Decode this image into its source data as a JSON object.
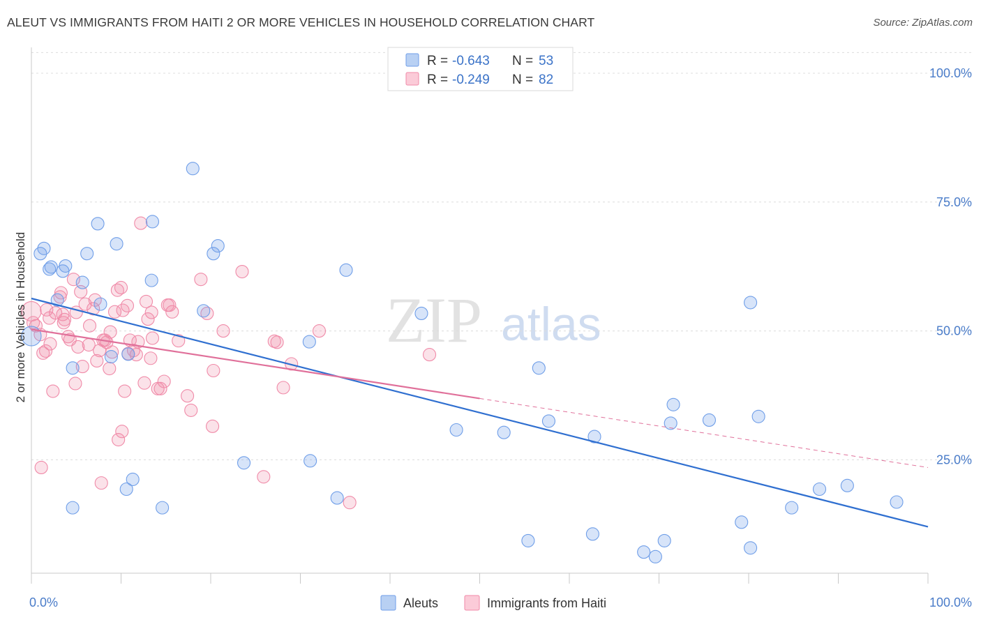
{
  "header": {
    "title": "ALEUT VS IMMIGRANTS FROM HAITI 2 OR MORE VEHICLES IN HOUSEHOLD CORRELATION CHART",
    "source": "Source: ZipAtlas.com"
  },
  "watermark": {
    "zip": "ZIP",
    "atlas": "atlas"
  },
  "legend": {
    "rows": [
      {
        "r_label": "R =",
        "r_value": "-0.643",
        "n_label": "N =",
        "n_value": "53",
        "color": "#6f9ee8"
      },
      {
        "r_label": "R =",
        "r_value": "-0.249",
        "n_label": "N =",
        "n_value": "82",
        "color": "#f08aa8"
      }
    ]
  },
  "bottom_legend": {
    "items": [
      {
        "label": "Aleuts",
        "color": "#6f9ee8"
      },
      {
        "label": "Immigrants from Haiti",
        "color": "#f08aa8"
      }
    ]
  },
  "chart_data": {
    "type": "scatter",
    "title": "ALEUT VS IMMIGRANTS FROM HAITI 2 OR MORE VEHICLES IN HOUSEHOLD CORRELATION CHART",
    "xlabel": "",
    "ylabel": "2 or more Vehicles in Household",
    "xlim": [
      0,
      100
    ],
    "ylim": [
      3,
      105
    ],
    "x_tick_labels": [
      "0.0%",
      "100.0%"
    ],
    "y_tick_labels": [
      "100.0%",
      "75.0%",
      "50.0%",
      "25.0%"
    ],
    "y_ticks": [
      100,
      75,
      50,
      25
    ],
    "grid": true,
    "legend_position": "top-center",
    "colors": {
      "aleuts": "#6f9ee8",
      "haiti": "#f08aa8",
      "aleuts_line": "#2f6fd0",
      "haiti_line": "#e0709a"
    },
    "series": [
      {
        "name": "Aleuts",
        "trend": {
          "x0": 0,
          "y0": 56.3,
          "x1": 100,
          "y1": 12.0
        },
        "points": [
          [
            0.0,
            49.0
          ],
          [
            1.0,
            65.0
          ],
          [
            1.4,
            66.0
          ],
          [
            2.0,
            62.0
          ],
          [
            2.2,
            62.4
          ],
          [
            2.9,
            56.0
          ],
          [
            3.5,
            61.6
          ],
          [
            3.8,
            62.6
          ],
          [
            4.6,
            42.8
          ],
          [
            5.7,
            59.4
          ],
          [
            6.2,
            65.0
          ],
          [
            7.4,
            70.8
          ],
          [
            7.7,
            55.2
          ],
          [
            8.9,
            45.0
          ],
          [
            9.5,
            66.9
          ],
          [
            10.6,
            19.3
          ],
          [
            10.8,
            45.5
          ],
          [
            11.3,
            21.2
          ],
          [
            13.5,
            71.2
          ],
          [
            13.4,
            59.8
          ],
          [
            14.6,
            15.7
          ],
          [
            18.0,
            81.5
          ],
          [
            19.2,
            53.9
          ],
          [
            20.3,
            65.0
          ],
          [
            20.8,
            66.5
          ],
          [
            23.7,
            24.4
          ],
          [
            31.0,
            47.9
          ],
          [
            31.1,
            24.8
          ],
          [
            34.1,
            17.6
          ],
          [
            35.1,
            61.8
          ],
          [
            43.5,
            53.4
          ],
          [
            47.4,
            30.8
          ],
          [
            52.7,
            30.3
          ],
          [
            55.4,
            9.3
          ],
          [
            56.6,
            42.8
          ],
          [
            57.7,
            32.5
          ],
          [
            62.6,
            10.6
          ],
          [
            62.8,
            29.5
          ],
          [
            68.3,
            7.1
          ],
          [
            69.6,
            6.2
          ],
          [
            70.6,
            9.3
          ],
          [
            71.3,
            32.1
          ],
          [
            71.6,
            35.7
          ],
          [
            75.6,
            32.7
          ],
          [
            79.2,
            12.9
          ],
          [
            80.2,
            7.9
          ],
          [
            80.2,
            55.5
          ],
          [
            81.1,
            33.4
          ],
          [
            84.8,
            15.7
          ],
          [
            87.9,
            19.3
          ],
          [
            91.0,
            20.0
          ],
          [
            96.5,
            16.8
          ],
          [
            4.6,
            15.7
          ]
        ]
      },
      {
        "name": "Immigrants from Haiti",
        "trend": {
          "x0": 0,
          "y0": 50.3,
          "x1": 100,
          "y1": 23.5,
          "solid_until_x": 50
        },
        "points": [
          [
            0.0,
            53.8
          ],
          [
            0.2,
            51.6
          ],
          [
            0.5,
            51.0
          ],
          [
            1.0,
            49.3
          ],
          [
            1.1,
            23.5
          ],
          [
            1.3,
            45.7
          ],
          [
            1.6,
            46.1
          ],
          [
            1.7,
            54.1
          ],
          [
            2.0,
            52.5
          ],
          [
            2.1,
            47.5
          ],
          [
            2.4,
            38.3
          ],
          [
            2.7,
            53.5
          ],
          [
            3.2,
            56.6
          ],
          [
            3.3,
            57.4
          ],
          [
            3.5,
            53.2
          ],
          [
            3.6,
            51.6
          ],
          [
            3.7,
            52.2
          ],
          [
            4.1,
            48.9
          ],
          [
            4.3,
            48.3
          ],
          [
            4.7,
            60.0
          ],
          [
            4.9,
            39.8
          ],
          [
            5.0,
            53.6
          ],
          [
            5.2,
            46.9
          ],
          [
            5.5,
            57.6
          ],
          [
            5.7,
            43.1
          ],
          [
            6.0,
            55.2
          ],
          [
            6.4,
            47.3
          ],
          [
            6.5,
            51.0
          ],
          [
            6.9,
            54.3
          ],
          [
            7.1,
            56.0
          ],
          [
            7.3,
            44.2
          ],
          [
            7.6,
            46.2
          ],
          [
            7.8,
            20.5
          ],
          [
            8.0,
            48.2
          ],
          [
            8.2,
            48.2
          ],
          [
            8.4,
            47.8
          ],
          [
            8.7,
            42.7
          ],
          [
            8.8,
            49.8
          ],
          [
            9.0,
            45.9
          ],
          [
            9.3,
            53.7
          ],
          [
            9.6,
            57.9
          ],
          [
            9.7,
            28.9
          ],
          [
            10.0,
            58.4
          ],
          [
            10.1,
            30.5
          ],
          [
            10.2,
            54.0
          ],
          [
            10.4,
            38.3
          ],
          [
            10.7,
            54.9
          ],
          [
            10.8,
            45.6
          ],
          [
            11.0,
            48.2
          ],
          [
            11.4,
            46.2
          ],
          [
            11.7,
            45.4
          ],
          [
            11.9,
            47.9
          ],
          [
            12.2,
            70.9
          ],
          [
            12.6,
            39.9
          ],
          [
            12.8,
            55.7
          ],
          [
            13.0,
            52.3
          ],
          [
            13.3,
            44.7
          ],
          [
            13.4,
            53.6
          ],
          [
            13.5,
            48.6
          ],
          [
            14.1,
            38.8
          ],
          [
            14.4,
            38.8
          ],
          [
            14.8,
            40.2
          ],
          [
            15.4,
            55.0
          ],
          [
            15.7,
            53.7
          ],
          [
            16.4,
            48.1
          ],
          [
            17.4,
            37.4
          ],
          [
            17.8,
            34.6
          ],
          [
            18.9,
            60.0
          ],
          [
            19.6,
            53.4
          ],
          [
            20.2,
            31.5
          ],
          [
            20.3,
            42.3
          ],
          [
            21.4,
            50.0
          ],
          [
            23.5,
            61.5
          ],
          [
            25.9,
            21.7
          ],
          [
            27.1,
            48.0
          ],
          [
            27.4,
            47.8
          ],
          [
            28.1,
            39.0
          ],
          [
            29.0,
            43.6
          ],
          [
            32.1,
            50.0
          ],
          [
            35.5,
            16.7
          ],
          [
            44.4,
            45.4
          ],
          [
            15.2,
            55.0
          ]
        ]
      }
    ]
  }
}
